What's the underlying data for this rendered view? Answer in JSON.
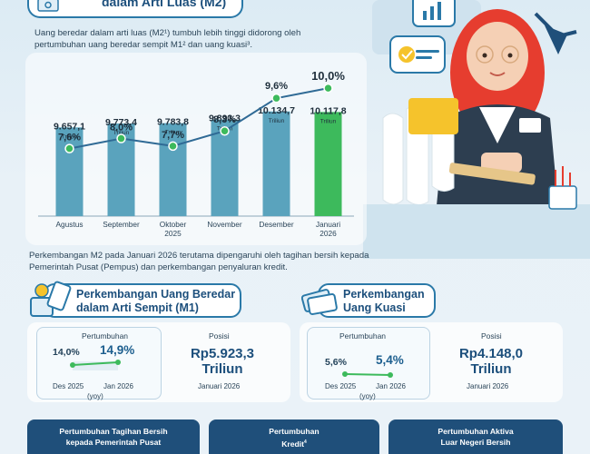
{
  "header": {
    "title": "dalam Arti Luas (M2)"
  },
  "intro": {
    "text": "Uang beredar dalam arti luas (M2¹) tumbuh lebih tinggi didorong oleh pertumbuhan uang beredar sempit M1² dan uang kuasi³."
  },
  "chart_data": {
    "type": "bar",
    "categories": [
      "Agustus",
      "September",
      "Oktober\n2025",
      "November",
      "Desember",
      "Januari\n2026"
    ],
    "bar_values": [
      9657.1,
      9773.4,
      9783.8,
      9893.3,
      10134.7,
      10117.8
    ],
    "bar_labels": [
      "9.657,1",
      "9.773,4",
      "9.783,8",
      "9.893,3",
      "10.134,7",
      "10.117,8"
    ],
    "bar_unit": "Triliun",
    "growth_values": [
      7.6,
      8.0,
      7.7,
      8.3,
      9.6,
      10.0
    ],
    "growth_labels": [
      "7,6%",
      "8,0%",
      "7,7%",
      "8,3%",
      "9,6%",
      "10,0%"
    ],
    "highlight_index": 5,
    "colors": {
      "bar": "#5aa3bd",
      "bar_highlight": "#3dba5c",
      "line": "#2f6a95",
      "marker": "#3dba5c"
    }
  },
  "mid_text": "Perkembangan M2 pada Januari 2026 terutama dipengaruhi oleh tagihan bersih kepada Pemerintah Pusat (Pempus) dan perkembangan penyaluran kredit.",
  "m1": {
    "title_line1": "Perkembangan Uang Beredar",
    "title_line2": "dalam Arti Sempit (M1)",
    "growth_label": "Pertumbuhan",
    "prev_value": "14,0%",
    "curr_value": "14,9%",
    "prev_period": "Des 2025",
    "curr_period": "Jan 2026",
    "yoy": "(yoy)",
    "position_label": "Posisi",
    "position_value_1": "Rp5.923,3",
    "position_value_2": "Triliun",
    "position_period": "Januari 2026"
  },
  "quasi": {
    "title_line1": "Perkembangan",
    "title_line2": "Uang Kuasi",
    "growth_label": "Pertumbuhan",
    "prev_value": "5,6%",
    "curr_value": "5,4%",
    "prev_period": "Des 2025",
    "curr_period": "Jan 2026",
    "yoy": "(yoy)",
    "position_label": "Posisi",
    "position_value_1": "Rp4.148,0",
    "position_value_2": "Triliun",
    "position_period": "Januari 2026"
  },
  "tiles": {
    "t1_line1": "Pertumbuhan Tagihan Bersih",
    "t1_line2": "kepada Pemerintah Pusat",
    "t2_line1": "Pertumbuhan",
    "t2_line2": "Kredit",
    "t2_sup": "4",
    "t3_line1": "Pertumbuhan Aktiva",
    "t3_line2": "Luar Negeri Bersih"
  }
}
